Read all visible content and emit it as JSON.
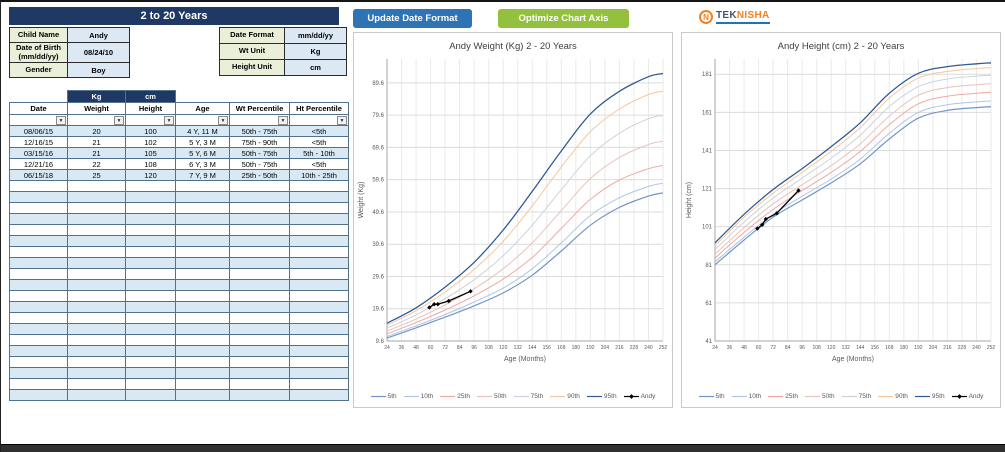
{
  "header": {
    "title": "2 to 20 Years"
  },
  "form": {
    "left": [
      {
        "label": "Child Name",
        "value": "Andy"
      },
      {
        "label": "Date of Birth (mm/dd/yy)",
        "value": "08/24/10"
      },
      {
        "label": "Gender",
        "value": "Boy"
      }
    ],
    "right": [
      {
        "label": "Date Format",
        "value": "mm/dd/yy"
      },
      {
        "label": "Wt Unit",
        "value": "Kg"
      },
      {
        "label": "Height Unit",
        "value": "cm"
      }
    ]
  },
  "toolbar": {
    "update_button": "Update Date Format",
    "optimize_button": "Optimize Chart Axis",
    "logo": {
      "initial": "N",
      "text_primary": "TEK",
      "text_secondary": "NISHA"
    }
  },
  "table": {
    "unit_weight": "Kg",
    "unit_height": "cm",
    "headers": [
      "Date",
      "Weight",
      "Height",
      "Age",
      "Wt Percentile",
      "Ht Percentile"
    ],
    "rows": [
      [
        "08/06/15",
        "20",
        "100",
        "4 Y, 11 M",
        "50th - 75th",
        "<5th"
      ],
      [
        "12/16/15",
        "21",
        "102",
        "5 Y, 3 M",
        "75th - 90th",
        "<5th"
      ],
      [
        "03/15/16",
        "21",
        "105",
        "5 Y, 6 M",
        "50th - 75th",
        "5th - 10th"
      ],
      [
        "12/21/16",
        "22",
        "108",
        "6 Y, 3 M",
        "50th - 75th",
        "<5th"
      ],
      [
        "06/15/18",
        "25",
        "120",
        "7 Y, 9 M",
        "25th - 50th",
        "10th - 25th"
      ]
    ],
    "empty_rows": 20
  },
  "colors": {
    "navy": "#203864",
    "label_bg": "#E9EFD9",
    "value_bg": "#DCE9F5",
    "row_alt": "#D9E9F4",
    "button_blue": "#2E74B5",
    "button_green": "#94C13D",
    "logo_orange": "#F58220",
    "logo_blue": "#1B75BB"
  },
  "chart_data": [
    {
      "type": "line",
      "title": "Andy Weight (Kg) 2 - 20 Years",
      "xlabel": "Age (Months)",
      "ylabel": "Weight (Kg)",
      "xlim": [
        24,
        252
      ],
      "ylim": [
        9.6,
        97
      ],
      "x_ticks": [
        24,
        36,
        48,
        60,
        72,
        84,
        96,
        108,
        120,
        132,
        144,
        156,
        168,
        180,
        192,
        204,
        216,
        228,
        240,
        252
      ],
      "y_ticks": [
        9.6,
        19.6,
        29.6,
        39.6,
        49.6,
        59.6,
        69.6,
        79.6,
        89.6
      ],
      "grid": true,
      "legend_position": "bottom",
      "x": [
        24,
        48,
        72,
        96,
        120,
        144,
        168,
        192,
        216,
        240,
        252
      ],
      "series": [
        {
          "name": "5th",
          "color": "#7396C8",
          "width": 1.2,
          "values": [
            10.5,
            13.7,
            17.0,
            20.5,
            24.5,
            30.0,
            37.5,
            45.5,
            51.0,
            54.5,
            55.5
          ]
        },
        {
          "name": "10th",
          "color": "#AEC6E8",
          "width": 1,
          "values": [
            11.0,
            14.3,
            17.8,
            21.7,
            26.0,
            32.0,
            40.0,
            48.5,
            54.0,
            57.5,
            58.5
          ]
        },
        {
          "name": "25th",
          "color": "#F0A9A2",
          "width": 1,
          "values": [
            11.8,
            15.3,
            19.2,
            23.6,
            28.8,
            35.5,
            44.5,
            53.5,
            59.5,
            63.0,
            64.0
          ]
        },
        {
          "name": "50th",
          "color": "#E7C3BC",
          "width": 1,
          "values": [
            12.7,
            16.4,
            20.8,
            25.8,
            32.0,
            40.0,
            50.0,
            60.0,
            66.5,
            70.5,
            71.5
          ]
        },
        {
          "name": "75th",
          "color": "#CDD3DC",
          "width": 1,
          "values": [
            13.6,
            17.7,
            22.7,
            28.6,
            36.0,
            45.5,
            56.5,
            67.0,
            74.0,
            78.5,
            79.5
          ]
        },
        {
          "name": "90th",
          "color": "#F5C6A0",
          "width": 1,
          "values": [
            14.5,
            19.0,
            24.8,
            31.8,
            40.5,
            51.5,
            63.5,
            74.5,
            81.5,
            86.0,
            87.0
          ]
        },
        {
          "name": "95th",
          "color": "#2F5B94",
          "width": 1.3,
          "values": [
            15.1,
            19.9,
            26.3,
            34.0,
            44.0,
            56.0,
            68.5,
            80.0,
            87.0,
            91.5,
            92.5
          ]
        },
        {
          "name": "Andy",
          "color": "#000000",
          "width": 1.3,
          "marker": "diamond",
          "x": [
            59,
            63,
            66,
            75,
            93
          ],
          "values": [
            20,
            21,
            21,
            22,
            25
          ]
        }
      ]
    },
    {
      "type": "line",
      "title": "Andy Height (cm) 2 - 20 Years",
      "xlabel": "Age (Months)",
      "ylabel": "Height (cm)",
      "xlim": [
        24,
        252
      ],
      "ylim": [
        41,
        189
      ],
      "x_ticks": [
        24,
        36,
        48,
        60,
        72,
        84,
        96,
        108,
        120,
        132,
        144,
        156,
        168,
        180,
        192,
        204,
        216,
        228,
        240,
        252
      ],
      "y_ticks": [
        41,
        61,
        81,
        101,
        121,
        141,
        161,
        181
      ],
      "grid": true,
      "legend_position": "bottom",
      "x": [
        24,
        48,
        72,
        96,
        120,
        144,
        168,
        192,
        216,
        240,
        252
      ],
      "series": [
        {
          "name": "5th",
          "color": "#7396C8",
          "width": 1.2,
          "values": [
            81,
            94,
            106,
            115,
            124,
            134,
            147,
            158,
            162,
            163.5,
            164
          ]
        },
        {
          "name": "10th",
          "color": "#AEC6E8",
          "width": 1,
          "values": [
            82.5,
            95.5,
            107.5,
            117,
            126,
            136.5,
            150,
            161,
            165,
            166.5,
            167
          ]
        },
        {
          "name": "25th",
          "color": "#F0A9A2",
          "width": 1,
          "values": [
            84.5,
            98,
            110,
            120,
            129.5,
            140.5,
            154.5,
            165.5,
            169.5,
            171,
            171.5
          ]
        },
        {
          "name": "50th",
          "color": "#E7C3BC",
          "width": 1,
          "values": [
            86.5,
            100.5,
            113,
            123,
            133,
            144.5,
            159,
            170,
            174,
            175.5,
            176
          ]
        },
        {
          "name": "75th",
          "color": "#CDD3DC",
          "width": 1,
          "values": [
            89,
            103.5,
            116,
            126.5,
            137,
            149,
            164,
            174.5,
            178.5,
            180,
            180.5
          ]
        },
        {
          "name": "90th",
          "color": "#F5C6A0",
          "width": 1,
          "values": [
            91,
            106,
            118.5,
            129.5,
            140.5,
            153,
            168.5,
            179,
            182.5,
            184,
            184.5
          ]
        },
        {
          "name": "95th",
          "color": "#2F5B94",
          "width": 1.3,
          "values": [
            92.5,
            107.5,
            120.5,
            131.5,
            143,
            155.5,
            171,
            181.5,
            185,
            186.5,
            187
          ]
        },
        {
          "name": "Andy",
          "color": "#000000",
          "width": 1.3,
          "marker": "diamond",
          "x": [
            59,
            63,
            66,
            75,
            93
          ],
          "values": [
            100,
            102,
            105,
            108,
            120
          ]
        }
      ]
    }
  ]
}
